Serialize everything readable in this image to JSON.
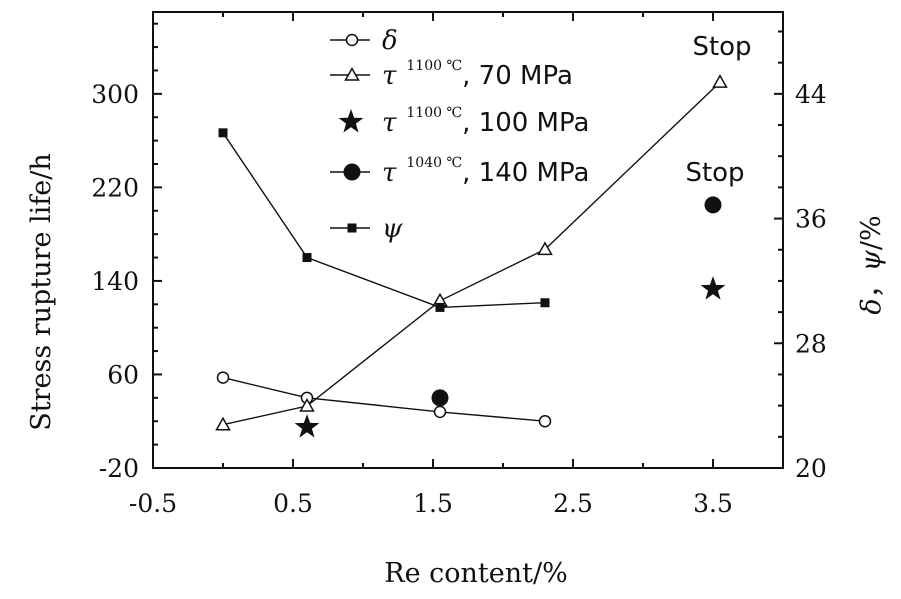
{
  "chart_data": {
    "type": "line",
    "x_axis": {
      "label": "Re content/%",
      "range": [
        -0.5,
        4.0
      ],
      "ticks": [
        -0.5,
        0.5,
        1.5,
        2.5,
        3.5
      ],
      "tick_labels": [
        "-0.5",
        "0.5",
        "1.5",
        "2.5",
        "3.5"
      ]
    },
    "y_left": {
      "label": "Stress rupture life/h",
      "range": [
        -20,
        370
      ],
      "ticks": [
        -20,
        60,
        140,
        220,
        300
      ],
      "tick_labels": [
        "-20",
        "60",
        "140",
        "220",
        "300"
      ]
    },
    "y_right": {
      "label": "δ, ψ/%",
      "label_parts": [
        "δ",
        "，",
        "ψ",
        "/%"
      ],
      "range": [
        20,
        49.25
      ],
      "ticks": [
        20,
        28,
        36,
        44
      ],
      "tick_labels": [
        "20",
        "28",
        "36",
        "44"
      ]
    },
    "series": [
      {
        "name": "δ",
        "axis": "right",
        "marker": "open-circle",
        "connected": true,
        "x": [
          0.0,
          0.6,
          1.55,
          2.3
        ],
        "y": [
          25.8,
          24.5,
          23.6,
          23.0
        ]
      },
      {
        "name": "τ 1100 ℃, 70 MPa",
        "legend_parts": [
          "τ",
          "1100 ℃",
          ", 70 MPa"
        ],
        "axis": "left",
        "marker": "open-triangle",
        "connected": true,
        "x": [
          0.0,
          0.6,
          1.55,
          2.3,
          3.55
        ],
        "y": [
          17,
          33,
          123,
          167,
          310
        ]
      },
      {
        "name": "τ 1100 ℃, 100 MPa",
        "legend_parts": [
          "τ",
          "1100 ℃",
          ",  100 MPa"
        ],
        "axis": "left",
        "marker": "star",
        "connected": false,
        "x": [
          0.6,
          3.5
        ],
        "y": [
          15,
          133
        ]
      },
      {
        "name": "τ 1040 ℃, 140 MPa",
        "legend_parts": [
          "τ",
          "1040 ℃",
          ", 140 MPa"
        ],
        "axis": "left",
        "marker": "filled-circle",
        "connected": false,
        "x": [
          1.55,
          3.5
        ],
        "y": [
          40,
          205
        ]
      },
      {
        "name": "ψ",
        "axis": "right",
        "marker": "filled-square",
        "connected": true,
        "x": [
          0.0,
          0.6,
          1.55,
          2.3
        ],
        "y": [
          41.5,
          33.5,
          30.3,
          30.6
        ]
      }
    ],
    "annotations": [
      {
        "text": "Stop",
        "x": 3.55,
        "y": 318,
        "axis": "left"
      },
      {
        "text": "Stop",
        "x": 3.5,
        "y": 210,
        "axis": "left"
      }
    ],
    "grid": false,
    "legend_position": "top-center"
  }
}
